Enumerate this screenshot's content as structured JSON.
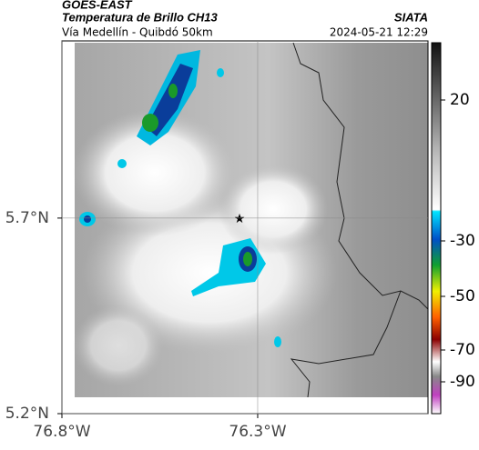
{
  "header": {
    "source": "GOES-EAST",
    "product": "Temperatura de Brillo CH13",
    "agency": "SIATA",
    "route": "Vía Medellín - Quibdó 50km",
    "timestamp": "2024-05-21 12:29"
  },
  "map": {
    "xlim": [
      -76.8,
      -75.865
    ],
    "ylim": [
      5.2,
      6.153
    ],
    "xticks": [
      {
        "value": -76.8,
        "label": "76.8°W"
      },
      {
        "value": -76.3,
        "label": "76.3°W"
      }
    ],
    "yticks": [
      {
        "value": 5.7,
        "label": "5.7°N"
      },
      {
        "value": 5.2,
        "label": "5.2°N"
      }
    ]
  },
  "colorbar": {
    "ticks": [
      20,
      -30,
      -50,
      -70,
      -90
    ]
  }
}
